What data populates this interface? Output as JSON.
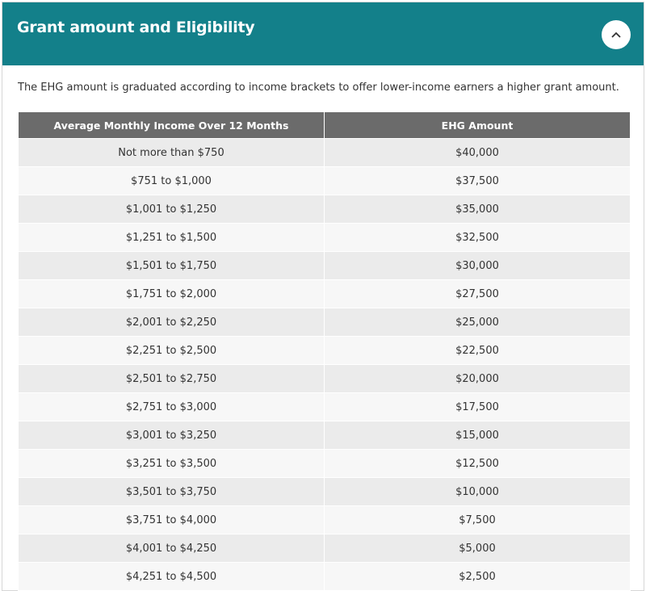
{
  "header": {
    "title": "Grant amount and Eligibility"
  },
  "intro": "The EHG amount is graduated according to income brackets to offer lower-income earners a higher grant amount.",
  "table": {
    "columns": [
      "Average Monthly Income Over 12 Months",
      "EHG Amount"
    ],
    "rows": [
      [
        "Not more than $750",
        "$40,000"
      ],
      [
        "$751 to $1,000",
        "$37,500"
      ],
      [
        "$1,001 to $1,250",
        "$35,000"
      ],
      [
        "$1,251 to $1,500",
        "$32,500"
      ],
      [
        "$1,501 to $1,750",
        "$30,000"
      ],
      [
        "$1,751 to $2,000",
        "$27,500"
      ],
      [
        "$2,001 to $2,250",
        "$25,000"
      ],
      [
        "$2,251 to $2,500",
        "$22,500"
      ],
      [
        "$2,501 to $2,750",
        "$20,000"
      ],
      [
        "$2,751 to $3,000",
        "$17,500"
      ],
      [
        "$3,001 to $3,250",
        "$15,000"
      ],
      [
        "$3,251 to $3,500",
        "$12,500"
      ],
      [
        "$3,501 to $3,750",
        "$10,000"
      ],
      [
        "$3,751 to $4,000",
        "$7,500"
      ],
      [
        "$4,001 to $4,250",
        "$5,000"
      ],
      [
        "$4,251 to $4,500",
        "$2,500"
      ]
    ]
  }
}
